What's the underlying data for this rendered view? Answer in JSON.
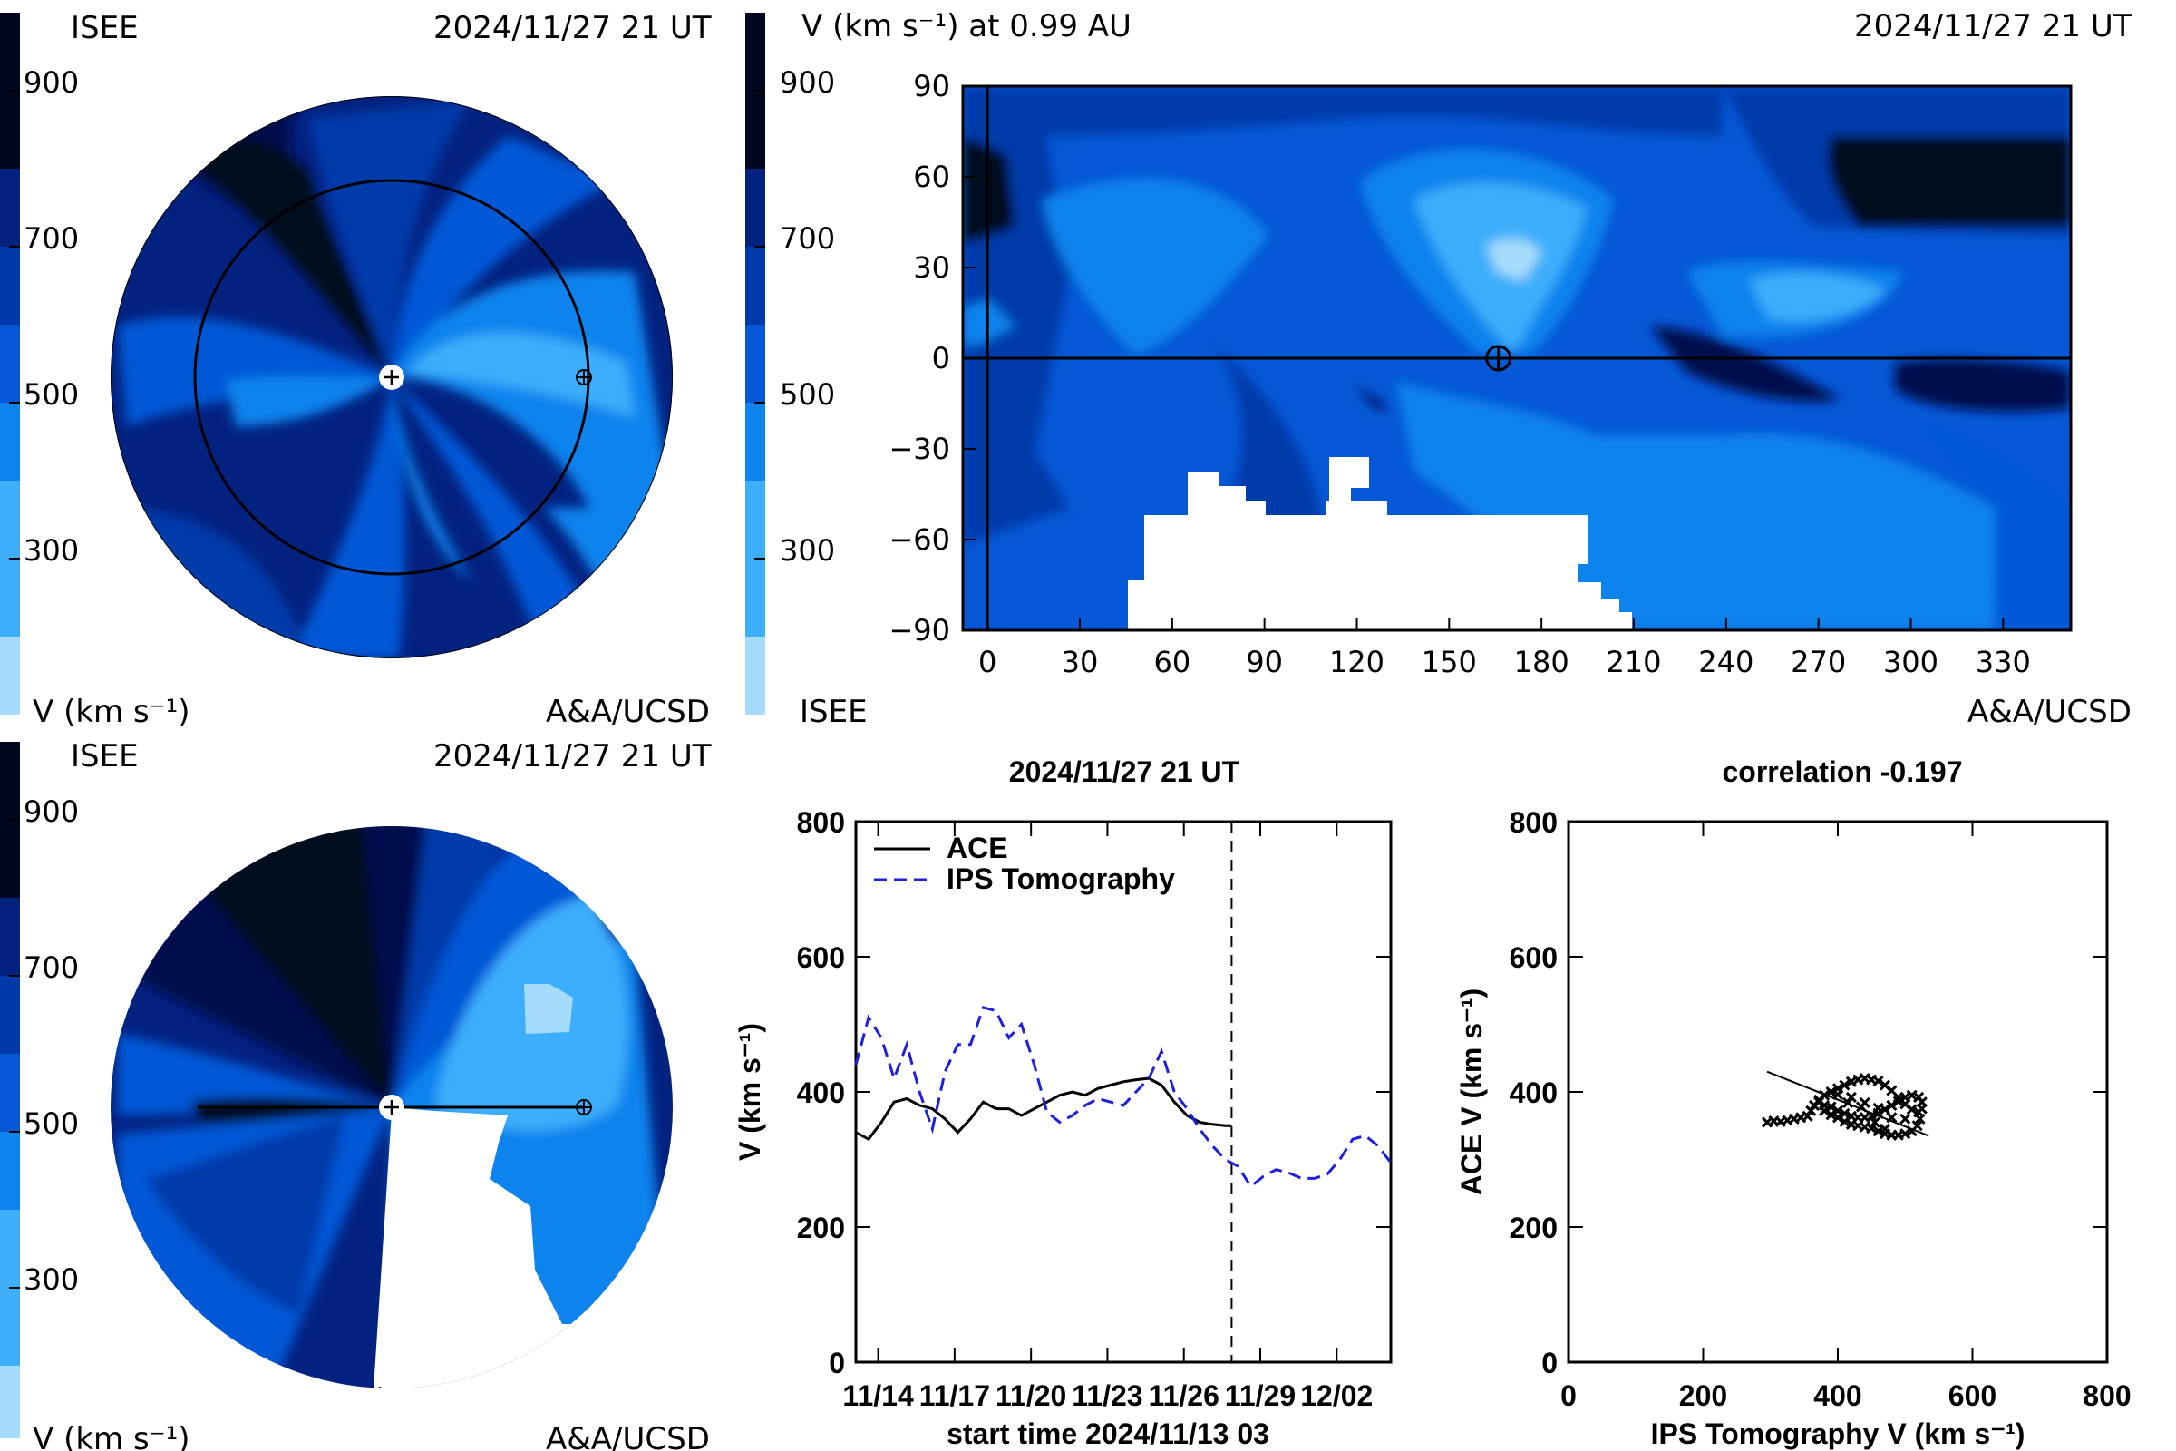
{
  "panels": {
    "ecliptic": {
      "org": "ISEE",
      "timestamp": "2024/11/27 21 UT",
      "cbar_label": "V (km s⁻¹)",
      "credit": "A&A/UCSD",
      "cbar_ticks": [
        "900",
        "700",
        "500",
        "300"
      ]
    },
    "meridional": {
      "org": "ISEE",
      "timestamp": "2024/11/27 21 UT",
      "cbar_label": "V (km s⁻¹)",
      "credit": "A&A/UCSD",
      "cbar_ticks": [
        "900",
        "700",
        "500",
        "300"
      ]
    },
    "map": {
      "title": "V (km s⁻¹) at 0.99 AU",
      "timestamp": "2024/11/27 21 UT",
      "org": "ISEE",
      "credit": "A&A/UCSD",
      "cbar_ticks": [
        "900",
        "700",
        "500",
        "300"
      ]
    }
  },
  "palette": [
    "#a6dcfb",
    "#3eaefb",
    "#0f83ed",
    "#0658d6",
    "#003aaa",
    "#032280",
    "#02114e",
    "#02071f"
  ],
  "chart_data": [
    {
      "type": "heatmap",
      "title": "V (km s⁻¹) at 0.99 AU",
      "xlabel": "",
      "ylabel": "",
      "xlim": [
        -8,
        352
      ],
      "ylim": [
        -90,
        90
      ],
      "x_ticks": [
        "0",
        "30",
        "60",
        "90",
        "120",
        "150",
        "180",
        "210",
        "240",
        "270",
        "300",
        "330"
      ],
      "y_ticks": [
        "90",
        "60",
        "30",
        "0",
        "−30",
        "−60",
        "−90"
      ],
      "earth_marker": {
        "lon": 166,
        "lat": 0
      },
      "color_scale": {
        "min": 200,
        "max": 1000,
        "ticks": [
          900,
          700,
          500,
          300
        ]
      }
    },
    {
      "type": "line",
      "title": "2024/11/27 21 UT",
      "xlabel": "start time 2024/11/13 03",
      "ylabel": "V (km s⁻¹)",
      "ylim": [
        0,
        800
      ],
      "xlim": [
        0,
        21
      ],
      "y_ticks": [
        "800",
        "600",
        "400",
        "200",
        "0"
      ],
      "x_ticks": [
        "11/14",
        "11/17",
        "11/20",
        "11/23",
        "11/26",
        "11/29",
        "12/02"
      ],
      "x_tick_days": [
        0.875,
        3.875,
        6.875,
        9.875,
        12.875,
        15.875,
        18.875
      ],
      "now_marker_day": 14.75,
      "series": [
        {
          "name": "ACE",
          "x": [
            0,
            0.5,
            1,
            1.5,
            2,
            2.5,
            3,
            3.5,
            4,
            4.5,
            5,
            5.5,
            6,
            6.5,
            7,
            7.5,
            8,
            8.5,
            9,
            9.5,
            10,
            10.5,
            11,
            11.5,
            12,
            12.5,
            13,
            13.5,
            14,
            14.5,
            14.75
          ],
          "y": [
            340,
            330,
            355,
            385,
            390,
            380,
            375,
            360,
            340,
            360,
            385,
            375,
            375,
            365,
            375,
            385,
            395,
            400,
            395,
            405,
            410,
            415,
            418,
            420,
            410,
            385,
            365,
            355,
            352,
            350,
            350
          ]
        },
        {
          "name": "IPS Tomography",
          "x": [
            0,
            0.5,
            1,
            1.5,
            2,
            2.5,
            3,
            3.5,
            4,
            4.5,
            5,
            5.5,
            6,
            6.5,
            7,
            7.5,
            8,
            8.5,
            9,
            9.5,
            10,
            10.5,
            11,
            11.5,
            12,
            12.5,
            13,
            13.5,
            14,
            14.5,
            15,
            15.5,
            16,
            16.5,
            17,
            17.5,
            18,
            18.5,
            19,
            19.5,
            20,
            20.5,
            21
          ],
          "y": [
            440,
            510,
            480,
            420,
            470,
            400,
            345,
            430,
            470,
            470,
            525,
            520,
            480,
            500,
            440,
            370,
            355,
            365,
            380,
            390,
            385,
            380,
            400,
            420,
            460,
            400,
            375,
            345,
            320,
            300,
            290,
            260,
            275,
            285,
            280,
            272,
            272,
            278,
            300,
            330,
            335,
            320,
            295
          ]
        }
      ]
    },
    {
      "type": "scatter",
      "title": "correlation -0.197",
      "xlabel": "IPS Tomography V (km s⁻¹)",
      "ylabel": "ACE V (km s⁻¹)",
      "xlim": [
        0,
        800
      ],
      "ylim": [
        0,
        800
      ],
      "x_ticks": [
        "0",
        "200",
        "400",
        "600",
        "800"
      ],
      "y_ticks": [
        "800",
        "600",
        "400",
        "200",
        "0"
      ],
      "fit_line": {
        "x": [
          295,
          535
        ],
        "y": [
          430,
          335
        ]
      },
      "points": [
        [
          295,
          355
        ],
        [
          305,
          357
        ],
        [
          315,
          356
        ],
        [
          325,
          358
        ],
        [
          335,
          360
        ],
        [
          345,
          362
        ],
        [
          355,
          364
        ],
        [
          360,
          372
        ],
        [
          365,
          380
        ],
        [
          372,
          388
        ],
        [
          380,
          395
        ],
        [
          390,
          400
        ],
        [
          400,
          405
        ],
        [
          410,
          410
        ],
        [
          420,
          415
        ],
        [
          430,
          418
        ],
        [
          440,
          420
        ],
        [
          450,
          418
        ],
        [
          460,
          416
        ],
        [
          470,
          410
        ],
        [
          480,
          402
        ],
        [
          490,
          392
        ],
        [
          500,
          382
        ],
        [
          510,
          374
        ],
        [
          520,
          370
        ],
        [
          525,
          375
        ],
        [
          525,
          385
        ],
        [
          520,
          392
        ],
        [
          510,
          395
        ],
        [
          500,
          392
        ],
        [
          490,
          386
        ],
        [
          480,
          380
        ],
        [
          470,
          374
        ],
        [
          460,
          368
        ],
        [
          450,
          364
        ],
        [
          440,
          362
        ],
        [
          430,
          362
        ],
        [
          420,
          364
        ],
        [
          410,
          368
        ],
        [
          400,
          372
        ],
        [
          390,
          378
        ],
        [
          380,
          380
        ],
        [
          372,
          385
        ],
        [
          380,
          372
        ],
        [
          390,
          366
        ],
        [
          400,
          362
        ],
        [
          410,
          356
        ],
        [
          420,
          352
        ],
        [
          430,
          350
        ],
        [
          440,
          348
        ],
        [
          450,
          346
        ],
        [
          460,
          342
        ],
        [
          470,
          338
        ],
        [
          480,
          336
        ],
        [
          490,
          336
        ],
        [
          500,
          338
        ],
        [
          510,
          342
        ],
        [
          518,
          350
        ],
        [
          522,
          360
        ],
        [
          500,
          360
        ],
        [
          480,
          362
        ],
        [
          460,
          376
        ],
        [
          440,
          384
        ],
        [
          420,
          392
        ],
        [
          400,
          396
        ],
        [
          470,
          345
        ],
        [
          455,
          355
        ],
        [
          435,
          378
        ],
        [
          415,
          384
        ]
      ]
    }
  ],
  "series_colors": {
    "ACE": "#000000",
    "IPS Tomography": "#1f1fdc"
  }
}
